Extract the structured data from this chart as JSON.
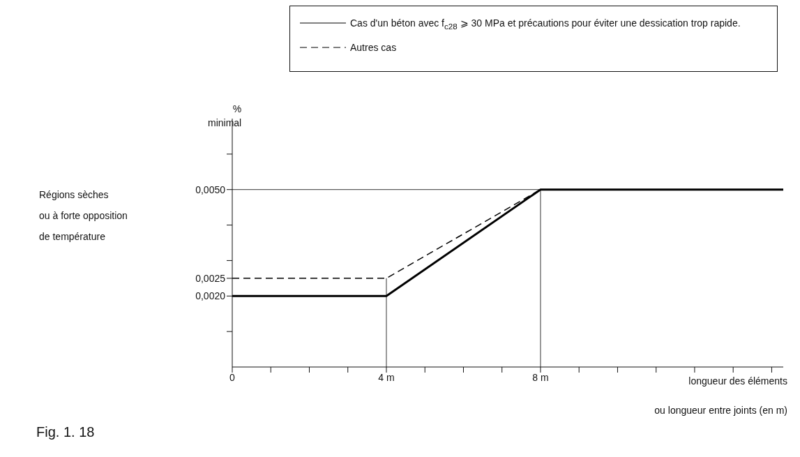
{
  "chart_data": {
    "type": "line",
    "ylabel": "%\nminimal",
    "xlabel": "longueur des éléments\nou longueur entre joints (en m)",
    "annotations": [
      "Régions sèches\nou à forte opposition\nde température",
      "Fig. 1. 18"
    ],
    "series": [
      {
        "name": "Cas d'un béton avec f$_{c28}$ ⩾ 30 MPa et précautions pour éviter une dessication trop rapide.",
        "color": "#000000",
        "line_style": "solid",
        "x": [
          0,
          4,
          8,
          14.3
        ],
        "values": [
          0.002,
          0.002,
          0.005,
          0.005
        ]
      },
      {
        "name": "Autres cas",
        "color": "#000000",
        "line_style": "dashed",
        "x": [
          0,
          4,
          8
        ],
        "values": [
          0.0025,
          0.0025,
          0.005
        ]
      }
    ],
    "xlim": [
      0,
      14.3
    ],
    "xticks": [
      {
        "value": 0,
        "label": "0"
      },
      {
        "value": 1,
        "label": null
      },
      {
        "value": 2,
        "label": null
      },
      {
        "value": 3,
        "label": null
      },
      {
        "value": 4,
        "label": "4 m"
      },
      {
        "value": 5,
        "label": null
      },
      {
        "value": 6,
        "label": null
      },
      {
        "value": 7,
        "label": null
      },
      {
        "value": 8,
        "label": "8 m"
      },
      {
        "value": 9,
        "label": null
      },
      {
        "value": 10,
        "label": null
      },
      {
        "value": 11,
        "label": null
      },
      {
        "value": 12,
        "label": null
      },
      {
        "value": 13,
        "label": null
      },
      {
        "value": 14,
        "label": null
      }
    ],
    "ylim": [
      0,
      0.007
    ],
    "yticks": [
      {
        "value": 0.001,
        "label": null
      },
      {
        "value": 0.002,
        "label": "0,0020"
      },
      {
        "value": 0.0025,
        "label": "0,0025"
      },
      {
        "value": 0.003,
        "label": null
      },
      {
        "value": 0.004,
        "label": null
      },
      {
        "value": 0.005,
        "label": "0,0050"
      },
      {
        "value": 0.006,
        "label": null
      }
    ],
    "ref_lines": [
      {
        "axis": "x",
        "value": 4,
        "label": null,
        "color": "#000000"
      },
      {
        "axis": "x",
        "value": 8,
        "label": null,
        "color": "#000000"
      },
      {
        "axis": "y",
        "value": 0.005,
        "label": null,
        "color": "#000000"
      }
    ],
    "grid": false,
    "legend": "top right",
    "marker": "none"
  }
}
